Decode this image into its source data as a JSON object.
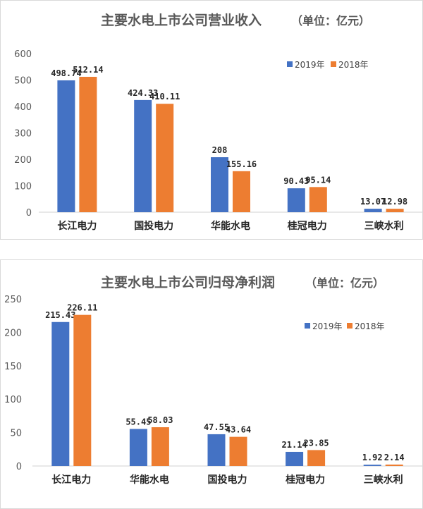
{
  "chart_data": [
    {
      "type": "bar",
      "title": "主要水电上市公司营业收入",
      "unit_note": "（单位：亿元）",
      "categories": [
        "长江电力",
        "国投电力",
        "华能水电",
        "桂冠电力",
        "三峡水利"
      ],
      "series": [
        {
          "name": "2019年",
          "color": "#4472C4",
          "values": [
            498.74,
            424.33,
            208,
            90.43,
            13.07
          ],
          "labels": [
            "498.74",
            "424.33",
            "208",
            "90.43",
            "13.07"
          ]
        },
        {
          "name": "2018年",
          "color": "#ED7D31",
          "values": [
            512.14,
            410.11,
            155.16,
            95.14,
            12.98
          ],
          "labels": [
            "512.14",
            "410.11",
            "155.16",
            "95.14",
            "12.98"
          ]
        }
      ],
      "ylim": [
        0,
        600
      ],
      "yticks": [
        "0",
        "100",
        "200",
        "300",
        "400",
        "500",
        "600"
      ],
      "grid": false,
      "legend": "top-right"
    },
    {
      "type": "bar",
      "title": "主要水电上市公司归母净利润",
      "unit_note": "（单位：亿元）",
      "categories": [
        "长江电力",
        "华能水电",
        "国投电力",
        "桂冠电力",
        "三峡水利"
      ],
      "series": [
        {
          "name": "2019年",
          "color": "#4472C4",
          "values": [
            215.43,
            55.45,
            47.55,
            21.14,
            1.92
          ],
          "labels": [
            "215.43",
            "55.45",
            "47.55",
            "21.14",
            "1.92"
          ]
        },
        {
          "name": "2018年",
          "color": "#ED7D31",
          "values": [
            226.11,
            58.03,
            43.64,
            23.85,
            2.14
          ],
          "labels": [
            "226.11",
            "58.03",
            "43.64",
            "23.85",
            "2.14"
          ]
        }
      ],
      "ylim": [
        0,
        250
      ],
      "yticks": [
        "0",
        "50",
        "100",
        "150",
        "200",
        "250"
      ],
      "grid": false,
      "legend": "top-right"
    }
  ]
}
